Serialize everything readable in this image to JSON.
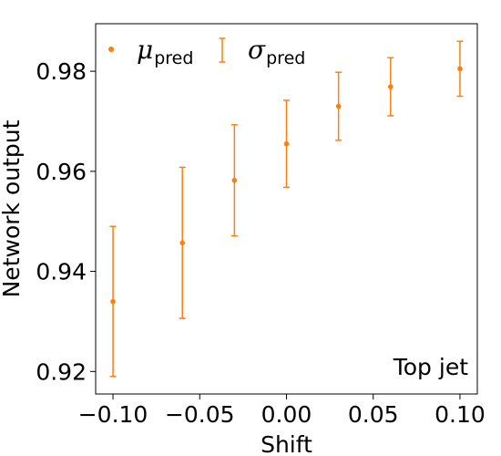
{
  "chart_data": {
    "type": "scatter",
    "title": "",
    "xlabel": "Shift",
    "ylabel": "Network output",
    "xlim": [
      -0.11,
      0.11
    ],
    "ylim": [
      0.9155,
      0.9895
    ],
    "xticks": [
      -0.1,
      -0.05,
      0.0,
      0.05,
      0.1
    ],
    "xtick_labels": [
      "−0.10",
      "−0.05",
      "0.00",
      "0.05",
      "0.10"
    ],
    "yticks": [
      0.92,
      0.94,
      0.96,
      0.98
    ],
    "ytick_labels": [
      "0.92",
      "0.94",
      "0.96",
      "0.98"
    ],
    "grid": false,
    "legend": {
      "placement": "top-left",
      "entries": [
        {
          "symbol": "μ",
          "subscript": "pred",
          "kind": "marker"
        },
        {
          "symbol": "σ",
          "subscript": "pred",
          "kind": "errorbar"
        }
      ]
    },
    "annotation": "Top jet",
    "color": "#ff7f0e",
    "series": [
      {
        "x": [
          -0.1,
          -0.06,
          -0.03,
          0.0,
          0.03,
          0.06,
          0.1
        ],
        "y": [
          0.934,
          0.9457,
          0.9582,
          0.9655,
          0.973,
          0.9769,
          0.9805
        ],
        "yerr": [
          0.015,
          0.0151,
          0.0111,
          0.0087,
          0.0068,
          0.0058,
          0.0055
        ]
      }
    ]
  }
}
